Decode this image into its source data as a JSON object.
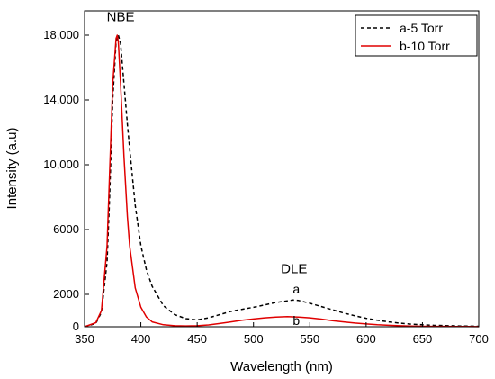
{
  "chart_data": {
    "type": "line",
    "title": "",
    "xlabel": "Wavelength (nm)",
    "ylabel": "Intensity (a.u)",
    "xlim": [
      350,
      700
    ],
    "ylim": [
      0,
      19500
    ],
    "x_ticks": [
      350,
      400,
      450,
      500,
      550,
      600,
      650,
      700
    ],
    "x_tick_labels": [
      "350",
      "400",
      "450",
      "500",
      "550",
      "600",
      "650",
      "700"
    ],
    "y_ticks": [
      0,
      2000,
      6000,
      10000,
      14000,
      18000
    ],
    "y_tick_labels": [
      "0",
      "2000",
      "6000",
      "10,000",
      "14,000",
      "18,000"
    ],
    "grid": false,
    "legend_position": "top-right",
    "series": [
      {
        "name": "a-5 Torr",
        "color": "#000000",
        "line_style": "dashed",
        "x": [
          350,
          360,
          365,
          370,
          372,
          375,
          378,
          380,
          382,
          385,
          388,
          390,
          395,
          400,
          405,
          410,
          420,
          430,
          440,
          450,
          460,
          470,
          480,
          490,
          500,
          510,
          520,
          530,
          535,
          540,
          550,
          560,
          570,
          580,
          590,
          600,
          610,
          620,
          630,
          640,
          650,
          660,
          670,
          680,
          690,
          700
        ],
        "y": [
          0,
          200,
          900,
          4000,
          7500,
          14000,
          17600,
          18000,
          17500,
          15000,
          12500,
          11000,
          7500,
          5000,
          3500,
          2500,
          1300,
          750,
          500,
          420,
          550,
          750,
          950,
          1080,
          1200,
          1350,
          1500,
          1600,
          1650,
          1620,
          1450,
          1250,
          1050,
          850,
          680,
          520,
          400,
          300,
          220,
          160,
          120,
          90,
          70,
          50,
          40,
          30
        ]
      },
      {
        "name": "b-10 Torr",
        "color": "#e00000",
        "line_style": "solid",
        "x": [
          350,
          360,
          365,
          370,
          372,
          375,
          378,
          379,
          380,
          382,
          385,
          388,
          390,
          395,
          400,
          405,
          410,
          420,
          430,
          440,
          450,
          460,
          470,
          480,
          490,
          500,
          510,
          520,
          530,
          540,
          550,
          560,
          570,
          580,
          590,
          600,
          610,
          620,
          630,
          640,
          650,
          660,
          670,
          680,
          690,
          700
        ],
        "y": [
          0,
          250,
          1000,
          5000,
          9000,
          15000,
          17800,
          18000,
          17600,
          15000,
          10500,
          6800,
          5000,
          2400,
          1200,
          600,
          300,
          120,
          60,
          50,
          60,
          110,
          200,
          300,
          400,
          480,
          550,
          600,
          620,
          600,
          550,
          470,
          380,
          300,
          230,
          170,
          120,
          90,
          60,
          45,
          30,
          25,
          20,
          15,
          10,
          5
        ]
      }
    ],
    "annotations": [
      {
        "text": "NBE",
        "x": 382,
        "y": 18850
      },
      {
        "text": "DLE",
        "x": 536,
        "y": 3300
      },
      {
        "text": "a",
        "x": 538,
        "y": 2050
      },
      {
        "text": "b",
        "x": 538,
        "y": 120
      }
    ]
  }
}
